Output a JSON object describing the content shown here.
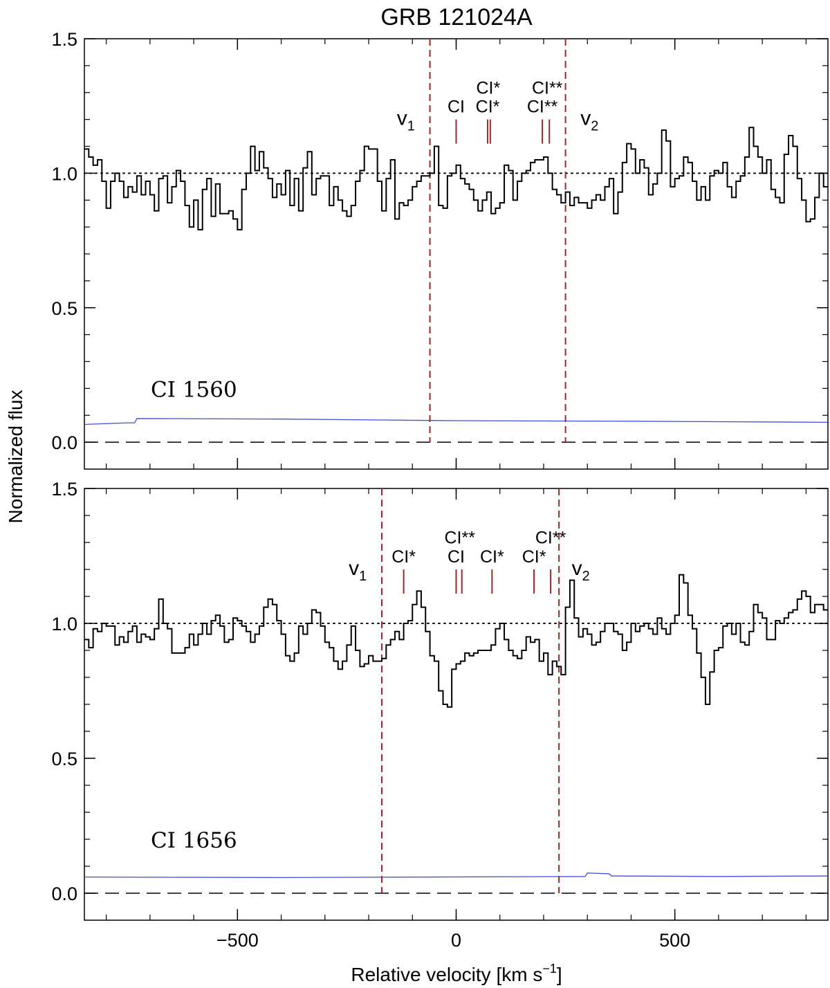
{
  "figure": {
    "title": "GRB 121024A",
    "ylabel": "Normalized flux",
    "xlabel_prefix": "Relative velocity  [km s",
    "xlabel_sup": "−1",
    "xlabel_suffix": "]"
  },
  "chart_data": [
    {
      "type": "line",
      "label": "CI 1560",
      "xlim": [
        -850,
        850
      ],
      "ylim": [
        -0.1,
        1.5
      ],
      "x_ticks": [
        -500,
        0,
        500
      ],
      "x_tick_labels": [
        "−500",
        "0",
        "500"
      ],
      "y_ticks": [
        0.0,
        0.5,
        1.0,
        1.5
      ],
      "y_tick_labels": [
        "0.0",
        "0.5",
        "1.0",
        "1.5"
      ],
      "continuum": 1.0,
      "zero_level": 0.0,
      "velocity_bounds": [
        -60,
        250
      ],
      "bound_labels": [
        {
          "base": "v",
          "sub": "1",
          "x": -115,
          "y": 1.18
        },
        {
          "base": "v",
          "sub": "2",
          "x": 305,
          "y": 1.18
        }
      ],
      "line_markers": [
        {
          "x": 0,
          "label": "CI",
          "label_y": 1.2
        },
        {
          "x": 72,
          "label": "CI*",
          "label_y": 1.2
        },
        {
          "x": 78,
          "label": "CI*",
          "label_y": 1.27
        },
        {
          "x": 197,
          "label": "CI**",
          "label_y": 1.2
        },
        {
          "x": 213,
          "label": "CI**",
          "label_y": 1.27
        }
      ],
      "flux_x0": -850,
      "flux_step": 10,
      "flux": [
        1.09,
        1.06,
        1.03,
        1.05,
        0.97,
        0.87,
        0.97,
        1.0,
        0.97,
        0.91,
        0.95,
        0.93,
        0.99,
        0.92,
        0.97,
        0.92,
        0.86,
        0.98,
        0.99,
        0.89,
        0.95,
        1.01,
        0.97,
        0.88,
        0.8,
        0.9,
        0.79,
        0.94,
        0.98,
        0.84,
        0.96,
        0.85,
        0.85,
        0.86,
        0.83,
        0.79,
        0.94,
        1.0,
        1.1,
        1.01,
        1.08,
        1.02,
        0.98,
        0.91,
        0.96,
        0.92,
        1.01,
        0.88,
        0.98,
        0.86,
        1.02,
        1.08,
        0.92,
        0.98,
        0.99,
        0.99,
        0.88,
        0.95,
        0.9,
        0.86,
        0.84,
        0.88,
        0.97,
        1.01,
        1.1,
        1.09,
        1.09,
        0.97,
        0.86,
        0.98,
        1.05,
        0.83,
        0.89,
        0.88,
        0.9,
        0.95,
        0.97,
        0.99,
        0.99,
        1.0,
        1.1,
        0.88,
        0.87,
        0.99,
        1.0,
        1.03,
        0.98,
        0.96,
        0.94,
        0.9,
        0.86,
        0.9,
        0.93,
        0.85,
        0.87,
        0.89,
        1.03,
        1.01,
        0.9,
        0.97,
        1.0,
        1.01,
        1.04,
        1.05,
        1.05,
        1.06,
        1.0,
        0.94,
        0.92,
        0.89,
        0.93,
        0.88,
        0.91,
        0.89,
        0.89,
        0.87,
        0.9,
        0.92,
        0.9,
        0.95,
        0.98,
        0.85,
        0.93,
        1.04,
        1.11,
        1.09,
        1.0,
        1.05,
        1.02,
        0.92,
        0.96,
        1.0,
        1.16,
        1.12,
        0.95,
        0.98,
        0.99,
        1.06,
        1.04,
        0.97,
        0.9,
        0.95,
        0.9,
        0.99,
        1.01,
        1.0,
        1.04,
        0.95,
        0.91,
        0.97,
        0.99,
        1.06,
        1.17,
        1.1,
        1.06,
        1.0,
        1.05,
        0.94,
        0.91,
        0.89,
        1.07,
        1.14,
        1.1,
        0.98,
        0.9,
        0.82,
        0.83,
        0.91,
        1.0,
        0.95,
        0.98,
        1.01,
        0.96
      ]
    },
    {
      "type": "line",
      "label": "CI 1656",
      "xlim": [
        -850,
        850
      ],
      "ylim": [
        -0.1,
        1.5
      ],
      "x_ticks": [
        -500,
        0,
        500
      ],
      "x_tick_labels": [
        "−500",
        "0",
        "500"
      ],
      "y_ticks": [
        0.0,
        0.5,
        1.0,
        1.5
      ],
      "y_tick_labels": [
        "0.0",
        "0.5",
        "1.0",
        "1.5"
      ],
      "continuum": 1.0,
      "zero_level": 0.0,
      "velocity_bounds": [
        -170,
        235
      ],
      "bound_labels": [
        {
          "base": "v",
          "sub": "1",
          "x": -225,
          "y": 1.18
        },
        {
          "base": "v",
          "sub": "2",
          "x": 285,
          "y": 1.18
        }
      ],
      "line_markers": [
        {
          "x": -120,
          "label": "CI*",
          "label_y": 1.2
        },
        {
          "x": 0,
          "label": "CI",
          "label_y": 1.2
        },
        {
          "x": 13,
          "label": "CI**",
          "label_y": 1.27
        },
        {
          "x": 82,
          "label": "CI*",
          "label_y": 1.2
        },
        {
          "x": 178,
          "label": "CI*",
          "label_y": 1.2
        },
        {
          "x": 216,
          "label": "CI**",
          "label_y": 1.27
        }
      ],
      "flux_x0": -850,
      "flux_step": 10,
      "flux": [
        0.94,
        0.91,
        0.98,
        0.97,
        1.0,
        0.99,
        0.99,
        0.92,
        0.95,
        0.93,
        0.97,
        0.99,
        0.93,
        0.96,
        0.95,
        0.94,
        0.98,
        1.09,
        1.0,
        0.98,
        0.89,
        0.89,
        0.89,
        0.91,
        0.96,
        0.92,
        0.96,
        1.0,
        0.96,
        1.01,
        1.03,
        0.99,
        0.93,
        0.94,
        1.02,
        1.01,
        0.99,
        0.97,
        0.93,
        0.96,
        0.99,
        1.06,
        1.09,
        1.07,
        1.01,
        0.96,
        0.88,
        0.86,
        0.89,
        0.99,
        0.96,
        1.0,
        1.05,
        1.04,
        0.99,
        0.93,
        0.91,
        0.86,
        0.83,
        0.86,
        0.92,
        0.99,
        0.9,
        0.84,
        0.85,
        0.88,
        0.86,
        0.86,
        0.87,
        0.92,
        0.94,
        0.97,
        0.94,
        1.0,
        1.01,
        1.07,
        1.12,
        1.06,
        0.97,
        0.88,
        0.86,
        0.75,
        0.7,
        0.69,
        0.83,
        0.85,
        0.86,
        0.89,
        0.88,
        0.89,
        0.9,
        0.9,
        0.9,
        0.92,
        0.98,
        1.0,
        0.94,
        0.9,
        0.88,
        0.87,
        0.9,
        0.95,
        0.93,
        0.94,
        0.86,
        0.89,
        0.81,
        0.86,
        0.84,
        0.81,
        1.06,
        1.16,
        1.02,
        0.95,
        0.98,
        0.96,
        0.92,
        0.93,
        0.97,
        1.0,
        1.0,
        0.97,
        0.96,
        0.9,
        0.93,
        1.0,
        0.97,
        0.99,
        1.0,
        0.98,
        0.96,
        1.02,
        0.98,
        0.96,
        1.0,
        1.03,
        1.18,
        1.15,
        1.03,
        0.98,
        0.89,
        0.8,
        0.7,
        0.82,
        0.9,
        0.91,
        0.99,
        1.0,
        0.96,
        1.0,
        0.93,
        0.92,
        0.97,
        1.07,
        1.04,
        1.02,
        0.94,
        0.94,
        1.01,
        1.0,
        1.02,
        1.04,
        1.05,
        1.09,
        1.12,
        1.1,
        1.04,
        1.07,
        1.07,
        1.05,
        1.03,
        1.05
      ]
    }
  ]
}
